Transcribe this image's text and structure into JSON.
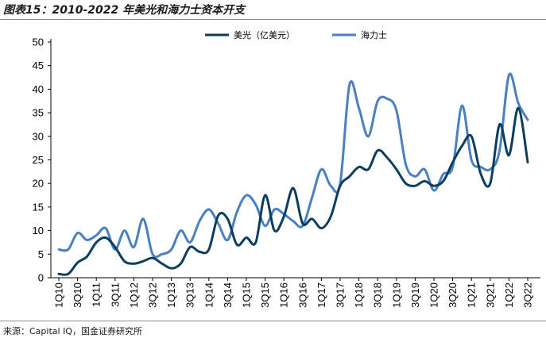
{
  "header": {
    "title": "图表15：2010-2022 年美光和海力士资本开支"
  },
  "footer": {
    "source": "来源：Capital IQ，国金证券研究所"
  },
  "chart_data": {
    "type": "line",
    "title": "图表15：2010-2022 年美光和海力士资本开支",
    "xlabel": "",
    "ylabel": "",
    "ylim": [
      0,
      50
    ],
    "yticks": [
      0,
      5,
      10,
      15,
      20,
      25,
      30,
      35,
      40,
      45,
      50
    ],
    "grid": false,
    "legend_position": "top",
    "x_tick_labels": [
      "1Q10",
      "3Q10",
      "1Q11",
      "3Q11",
      "1Q12",
      "3Q12",
      "1Q13",
      "3Q13",
      "1Q14",
      "3Q14",
      "1Q15",
      "3Q15",
      "1Q16",
      "3Q16",
      "1Q17",
      "3Q17",
      "1Q18",
      "3Q18",
      "1Q19",
      "3Q19",
      "1Q20",
      "3Q20",
      "1Q21",
      "3Q21",
      "1Q22",
      "3Q22"
    ],
    "categories": [
      "1Q10",
      "2Q10",
      "3Q10",
      "4Q10",
      "1Q11",
      "2Q11",
      "3Q11",
      "4Q11",
      "1Q12",
      "2Q12",
      "3Q12",
      "4Q12",
      "1Q13",
      "2Q13",
      "3Q13",
      "4Q13",
      "1Q14",
      "2Q14",
      "3Q14",
      "4Q14",
      "1Q15",
      "2Q15",
      "3Q15",
      "4Q15",
      "1Q16",
      "2Q16",
      "3Q16",
      "4Q16",
      "1Q17",
      "2Q17",
      "3Q17",
      "4Q17",
      "1Q18",
      "2Q18",
      "3Q18",
      "4Q18",
      "1Q19",
      "2Q19",
      "3Q19",
      "4Q19",
      "1Q20",
      "2Q20",
      "3Q20",
      "4Q20",
      "1Q21",
      "2Q21",
      "3Q21",
      "4Q21",
      "1Q22",
      "2Q22",
      "3Q22"
    ],
    "series": [
      {
        "name": "美光（亿美元）",
        "color": "#0b3e5e",
        "values": [
          0.8,
          0.8,
          3.2,
          4.5,
          7.5,
          8.5,
          6.5,
          3.5,
          3.0,
          3.5,
          4.2,
          3.0,
          2.0,
          3.0,
          6.5,
          5.5,
          6.0,
          13.2,
          12.5,
          7.0,
          8.5,
          7.5,
          17.5,
          10.0,
          13.0,
          19.0,
          11.5,
          12.5,
          10.5,
          13.0,
          19.5,
          21.5,
          23.5,
          23.0,
          27.0,
          25.5,
          23.0,
          20.0,
          19.5,
          20.5,
          19.5,
          20.5,
          24.5,
          28.0,
          30.0,
          22.0,
          20.0,
          32.5,
          26.0,
          36.0,
          24.5
        ]
      },
      {
        "name": "海力士",
        "color": "#4a7fc1",
        "values": [
          6.0,
          6.0,
          9.5,
          8.0,
          9.0,
          10.5,
          6.0,
          10.0,
          6.5,
          12.5,
          5.0,
          5.0,
          6.0,
          10.0,
          7.5,
          12.0,
          14.5,
          11.5,
          8.0,
          14.0,
          17.5,
          15.5,
          11.0,
          14.5,
          13.5,
          12.0,
          11.0,
          17.0,
          23.0,
          19.5,
          20.0,
          41.0,
          36.0,
          30.0,
          37.5,
          38.0,
          35.5,
          24.0,
          21.5,
          23.0,
          18.5,
          22.0,
          23.5,
          36.5,
          25.0,
          23.5,
          23.0,
          27.0,
          43.0,
          37.0,
          33.5
        ]
      }
    ]
  }
}
